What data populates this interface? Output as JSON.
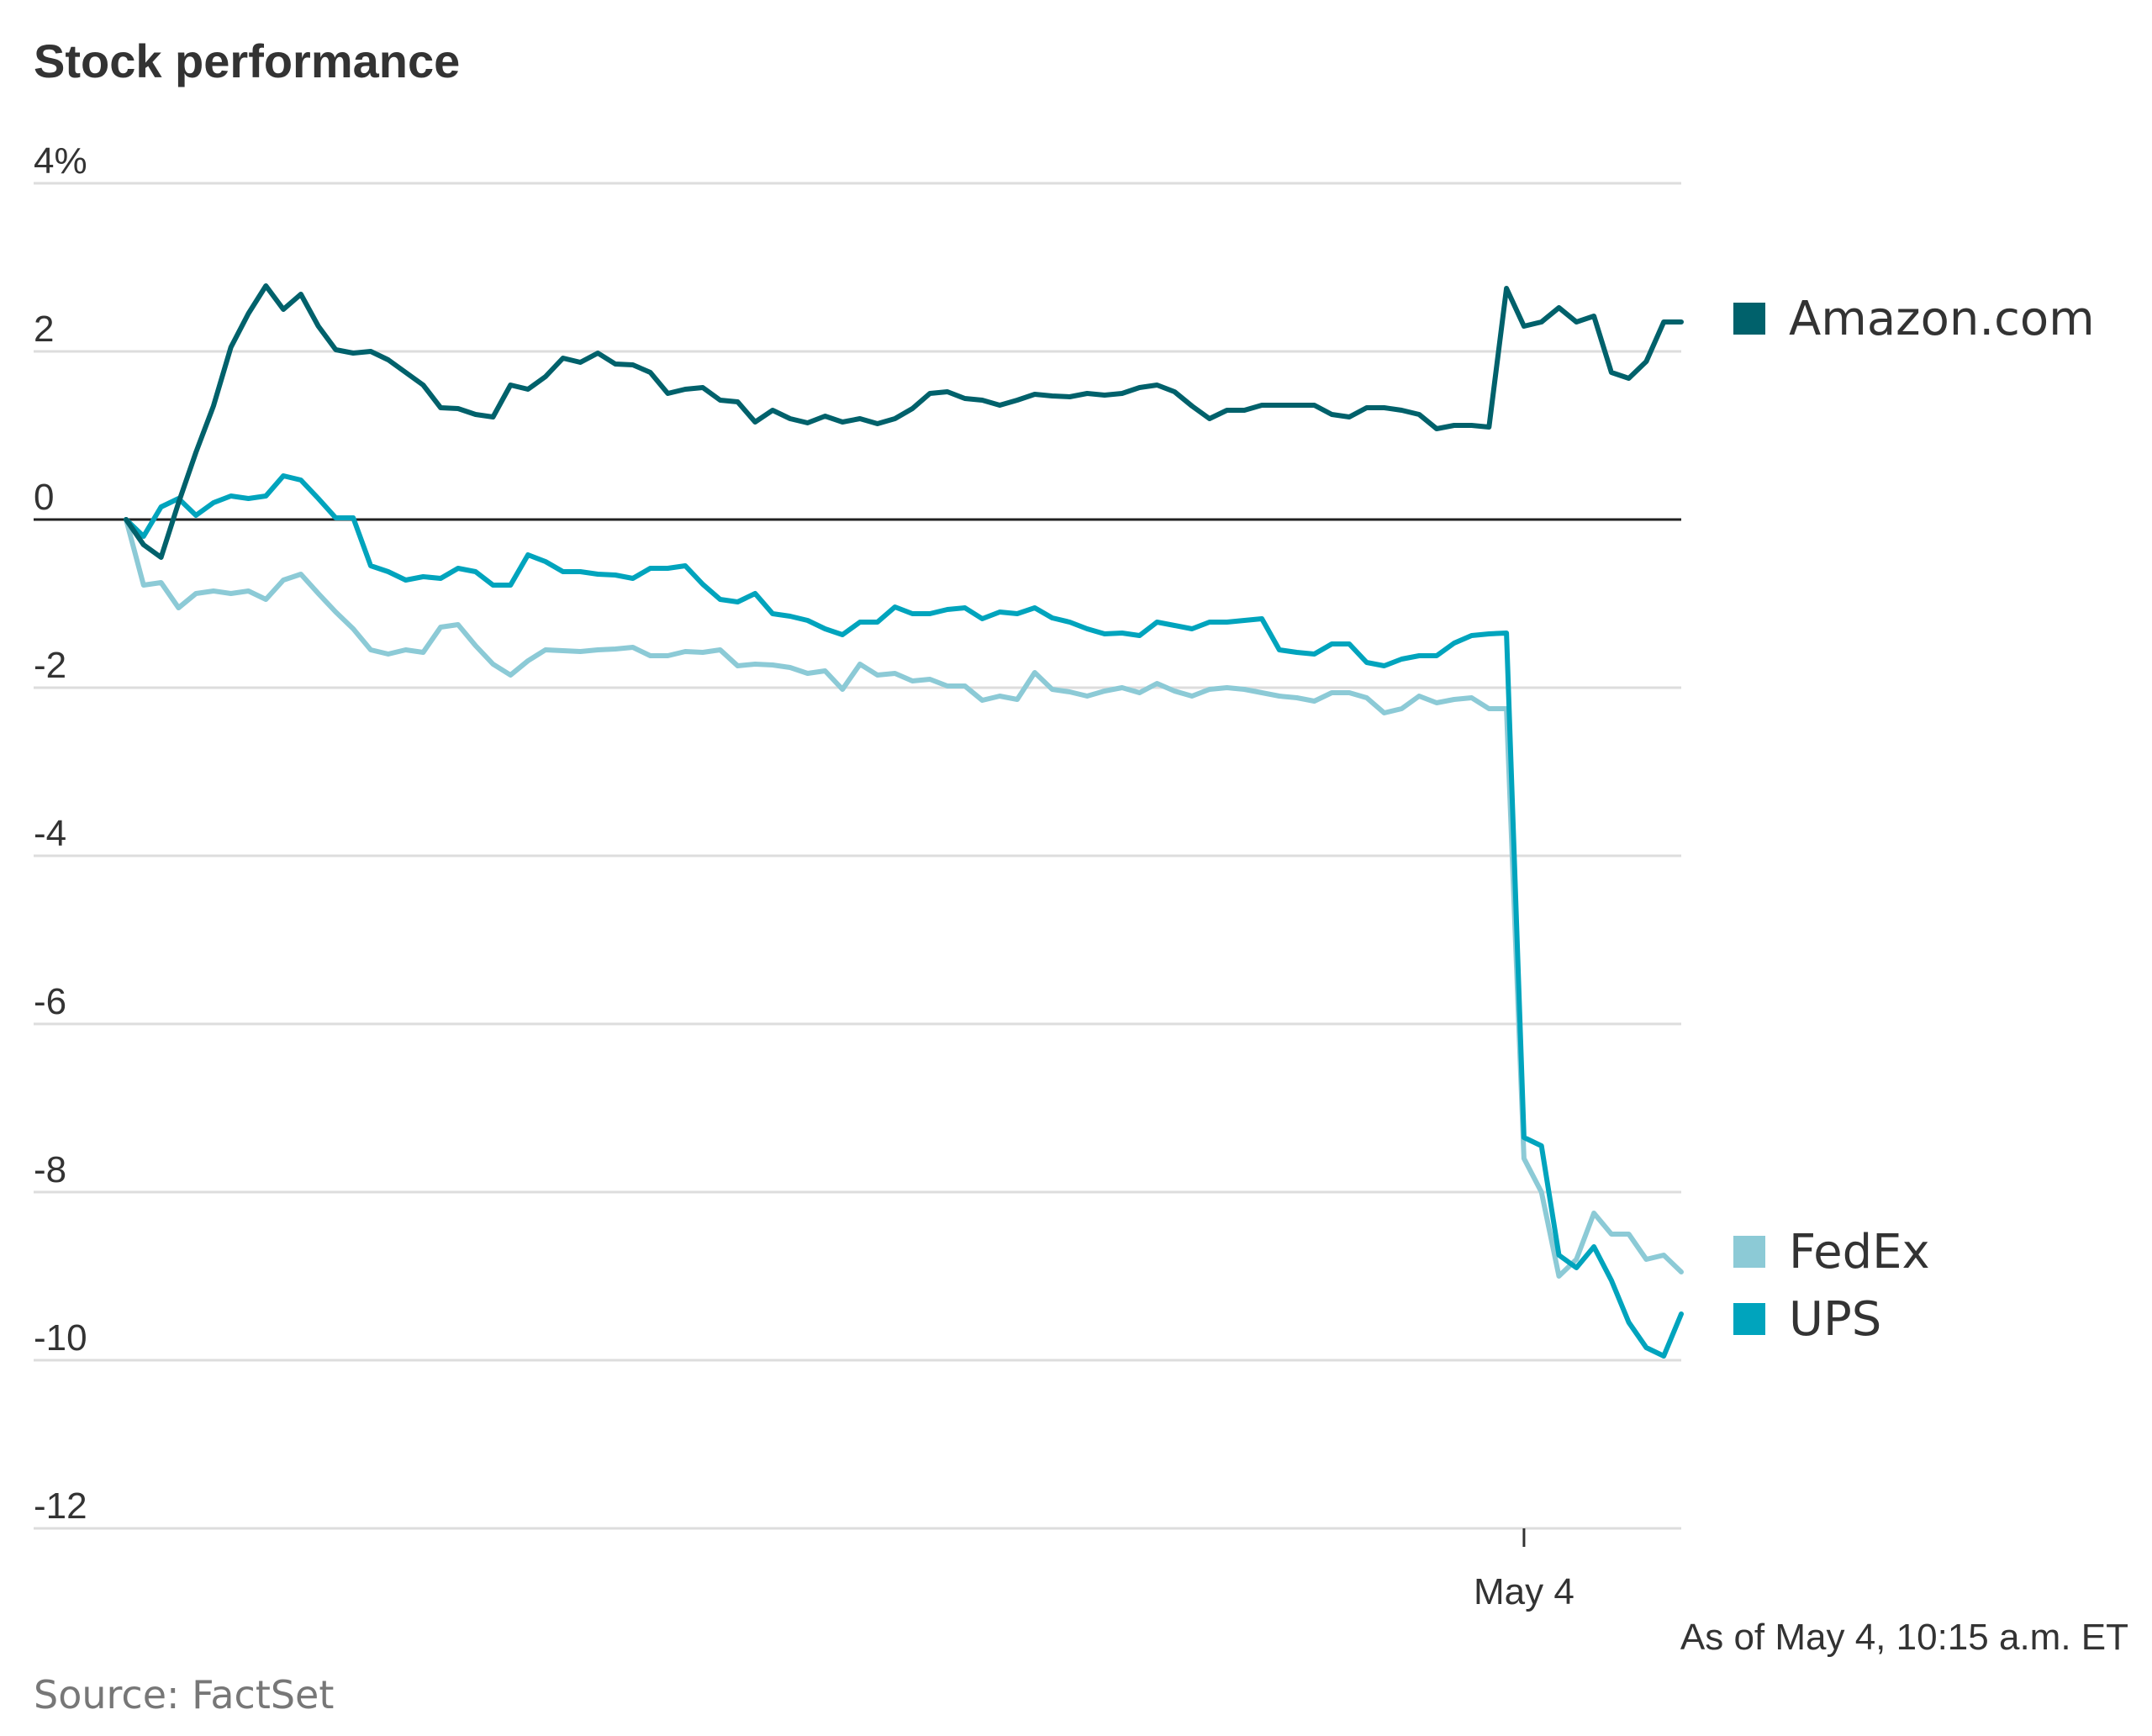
{
  "chart_data": {
    "type": "line",
    "title": "Stock performance",
    "ylabel": "",
    "xlabel": "",
    "ylim": [
      -12,
      4
    ],
    "y_ticks": [
      {
        "value": 4,
        "label": "4%"
      },
      {
        "value": 2,
        "label": "2"
      },
      {
        "value": 0,
        "label": "0"
      },
      {
        "value": -2,
        "label": "-2"
      },
      {
        "value": -4,
        "label": "-4"
      },
      {
        "value": -6,
        "label": "-6"
      },
      {
        "value": -8,
        "label": "-8"
      },
      {
        "value": -10,
        "label": "-10"
      },
      {
        "value": -12,
        "label": "-12"
      }
    ],
    "x_ticks": [
      {
        "value": 80,
        "label": "May 4"
      }
    ],
    "grid": true,
    "legend": "right",
    "note": "As of May 4, 10:15 a.m. ET",
    "source": "Source: FactSet",
    "series": [
      {
        "name": "Amazon.com",
        "color": "#00616b",
        "legend_at": 2.4,
        "x": [
          0,
          1,
          2,
          3,
          4,
          5,
          6,
          7,
          8,
          9,
          10,
          11,
          12,
          13,
          14,
          15,
          16,
          17,
          18,
          19,
          20,
          21,
          22,
          23,
          24,
          25,
          26,
          27,
          28,
          29,
          30,
          31,
          32,
          33,
          34,
          35,
          36,
          37,
          38,
          39,
          40,
          41,
          42,
          43,
          44,
          45,
          46,
          47,
          48,
          49,
          50,
          51,
          52,
          53,
          54,
          55,
          56,
          57,
          58,
          59,
          60,
          61,
          62,
          63,
          64,
          65,
          66,
          67,
          68,
          69,
          70,
          71,
          72,
          73,
          74,
          75,
          76,
          77,
          78,
          79,
          80,
          81,
          82,
          83,
          84,
          85,
          86,
          87,
          88,
          89
        ],
        "values": [
          0.0,
          -0.3,
          -0.45,
          0.2,
          0.8,
          1.35,
          2.05,
          2.45,
          2.78,
          2.5,
          2.68,
          2.3,
          2.02,
          1.98,
          2.0,
          1.9,
          1.75,
          1.6,
          1.33,
          1.32,
          1.25,
          1.22,
          1.6,
          1.55,
          1.7,
          1.92,
          1.87,
          1.98,
          1.85,
          1.84,
          1.75,
          1.5,
          1.55,
          1.57,
          1.42,
          1.4,
          1.16,
          1.3,
          1.2,
          1.15,
          1.23,
          1.16,
          1.2,
          1.14,
          1.2,
          1.32,
          1.5,
          1.52,
          1.44,
          1.42,
          1.36,
          1.42,
          1.49,
          1.47,
          1.46,
          1.5,
          1.48,
          1.5,
          1.57,
          1.6,
          1.52,
          1.35,
          1.2,
          1.3,
          1.3,
          1.36,
          1.36,
          1.36,
          1.36,
          1.25,
          1.22,
          1.33,
          1.33,
          1.3,
          1.25,
          1.08,
          1.12,
          1.12,
          1.1,
          2.75,
          2.3,
          2.35,
          2.52,
          2.35,
          2.42,
          1.75,
          1.68,
          1.88,
          2.35,
          2.35
        ]
      },
      {
        "name": "FedEx",
        "color": "#8ccad6",
        "legend_at": -8.7,
        "x": [
          0,
          1,
          2,
          3,
          4,
          5,
          6,
          7,
          8,
          9,
          10,
          11,
          12,
          13,
          14,
          15,
          16,
          17,
          18,
          19,
          20,
          21,
          22,
          23,
          24,
          25,
          26,
          27,
          28,
          29,
          30,
          31,
          32,
          33,
          34,
          35,
          36,
          37,
          38,
          39,
          40,
          41,
          42,
          43,
          44,
          45,
          46,
          47,
          48,
          49,
          50,
          51,
          52,
          53,
          54,
          55,
          56,
          57,
          58,
          59,
          60,
          61,
          62,
          63,
          64,
          65,
          66,
          67,
          68,
          69,
          70,
          71,
          72,
          73,
          74,
          75,
          76,
          77,
          78,
          79,
          80,
          81,
          82,
          83,
          84,
          85,
          86,
          87,
          88,
          89
        ],
        "values": [
          0.0,
          -0.78,
          -0.75,
          -1.05,
          -0.88,
          -0.85,
          -0.88,
          -0.85,
          -0.95,
          -0.72,
          -0.65,
          -0.88,
          -1.1,
          -1.3,
          -1.55,
          -1.6,
          -1.55,
          -1.58,
          -1.28,
          -1.25,
          -1.5,
          -1.72,
          -1.85,
          -1.68,
          -1.55,
          -1.56,
          -1.57,
          -1.55,
          -1.54,
          -1.52,
          -1.62,
          -1.62,
          -1.57,
          -1.58,
          -1.55,
          -1.74,
          -1.72,
          -1.73,
          -1.76,
          -1.83,
          -1.8,
          -2.02,
          -1.72,
          -1.85,
          -1.83,
          -1.92,
          -1.9,
          -1.98,
          -1.98,
          -2.15,
          -2.1,
          -2.14,
          -1.82,
          -2.02,
          -2.05,
          -2.1,
          -2.04,
          -2.0,
          -2.06,
          -1.95,
          -2.04,
          -2.1,
          -2.02,
          -2.0,
          -2.02,
          -2.06,
          -2.1,
          -2.12,
          -2.16,
          -2.06,
          -2.06,
          -2.12,
          -2.3,
          -2.25,
          -2.1,
          -2.18,
          -2.14,
          -2.12,
          -2.25,
          -2.25,
          -7.6,
          -8.0,
          -9.0,
          -8.8,
          -8.25,
          -8.5,
          -8.5,
          -8.8,
          -8.75,
          -8.95
        ]
      },
      {
        "name": "UPS",
        "color": "#00a4bd",
        "legend_at": -9.5,
        "x": [
          0,
          1,
          2,
          3,
          4,
          5,
          6,
          7,
          8,
          9,
          10,
          11,
          12,
          13,
          14,
          15,
          16,
          17,
          18,
          19,
          20,
          21,
          22,
          23,
          24,
          25,
          26,
          27,
          28,
          29,
          30,
          31,
          32,
          33,
          34,
          35,
          36,
          37,
          38,
          39,
          40,
          41,
          42,
          43,
          44,
          45,
          46,
          47,
          48,
          49,
          50,
          51,
          52,
          53,
          54,
          55,
          56,
          57,
          58,
          59,
          60,
          61,
          62,
          63,
          64,
          65,
          66,
          67,
          68,
          69,
          70,
          71,
          72,
          73,
          74,
          75,
          76,
          77,
          78,
          79,
          80,
          81,
          82,
          83,
          84,
          85,
          86,
          87,
          88,
          89
        ],
        "values": [
          0.0,
          -0.2,
          0.15,
          0.25,
          0.05,
          0.2,
          0.28,
          0.25,
          0.28,
          0.52,
          0.47,
          0.25,
          0.02,
          0.02,
          -0.55,
          -0.62,
          -0.72,
          -0.68,
          -0.7,
          -0.58,
          -0.62,
          -0.78,
          -0.78,
          -0.42,
          -0.5,
          -0.62,
          -0.62,
          -0.65,
          -0.66,
          -0.7,
          -0.58,
          -0.58,
          -0.55,
          -0.77,
          -0.95,
          -0.98,
          -0.88,
          -1.12,
          -1.15,
          -1.2,
          -1.3,
          -1.37,
          -1.22,
          -1.22,
          -1.04,
          -1.12,
          -1.12,
          -1.07,
          -1.05,
          -1.18,
          -1.1,
          -1.12,
          -1.05,
          -1.17,
          -1.22,
          -1.3,
          -1.36,
          -1.35,
          -1.38,
          -1.22,
          -1.26,
          -1.3,
          -1.22,
          -1.22,
          -1.2,
          -1.18,
          -1.55,
          -1.58,
          -1.6,
          -1.48,
          -1.48,
          -1.7,
          -1.74,
          -1.66,
          -1.62,
          -1.62,
          -1.47,
          -1.38,
          -1.36,
          -1.35,
          -7.35,
          -7.45,
          -8.75,
          -8.9,
          -8.65,
          -9.05,
          -9.55,
          -9.85,
          -9.95,
          -9.45
        ]
      }
    ]
  }
}
